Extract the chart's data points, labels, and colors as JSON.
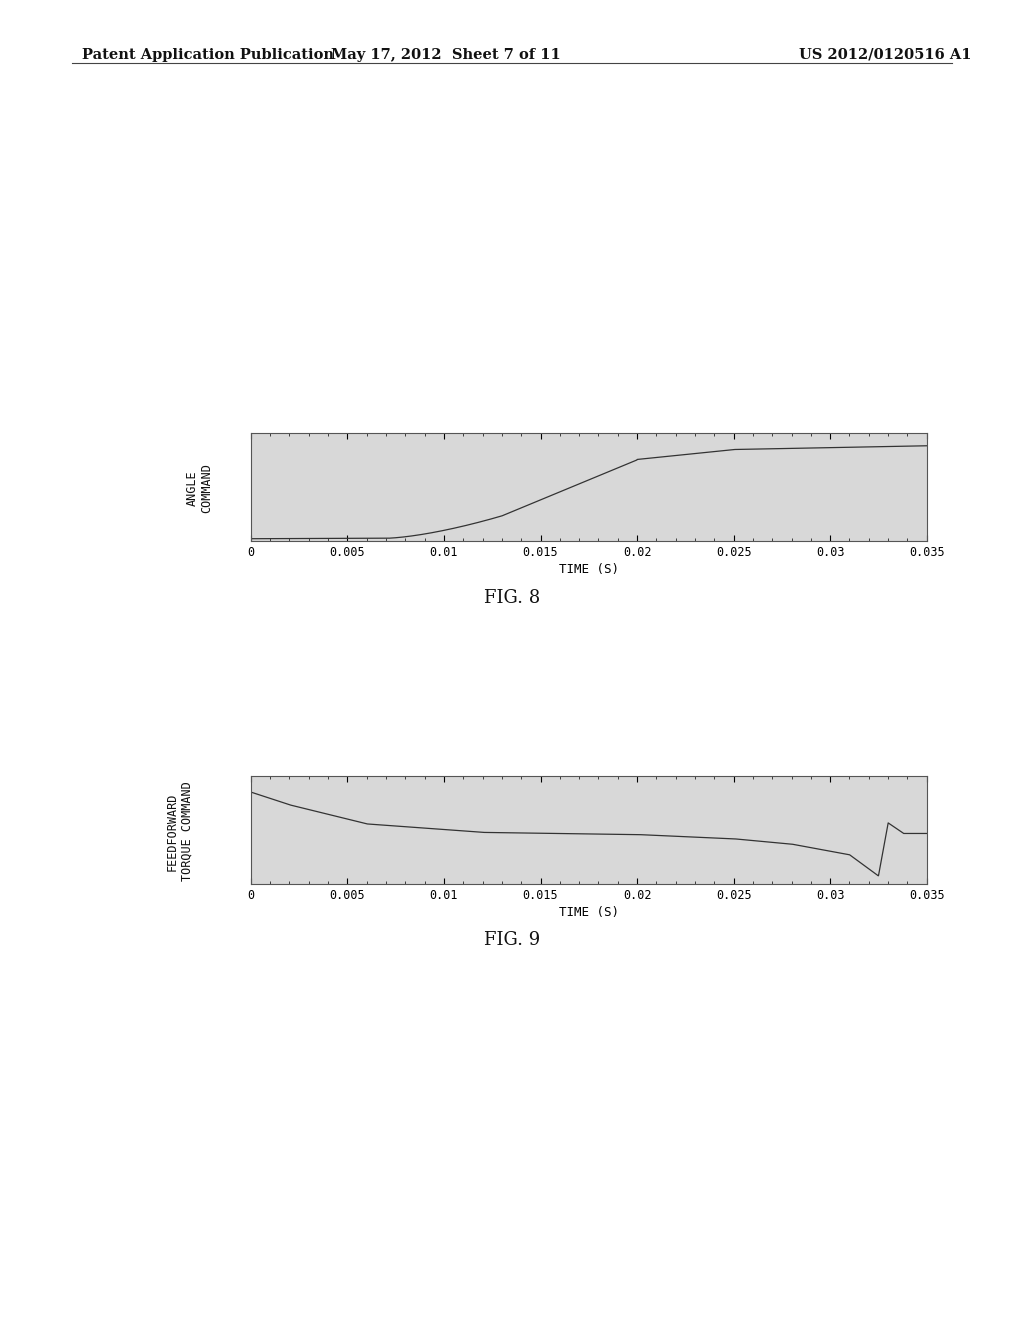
{
  "header_left": "Patent Application Publication",
  "header_center": "May 17, 2012  Sheet 7 of 11",
  "header_right": "US 2012/0120516 A1",
  "fig8_label": "FIG. 8",
  "fig9_label": "FIG. 9",
  "xlabel": "TIME (S)",
  "ylabel1": "ANGLE\nCOMMAND",
  "ylabel2": "FEEDFORWARD\nTORQUE COMMAND",
  "xlim": [
    0,
    0.035
  ],
  "xticks": [
    0,
    0.005,
    0.01,
    0.015,
    0.02,
    0.025,
    0.03,
    0.035
  ],
  "xticklabels": [
    "0",
    "0.005",
    "0.01",
    "0.015",
    "0.02",
    "0.025",
    "0.03",
    "0.035"
  ],
  "background_color": "#ffffff",
  "line_color": "#333333",
  "plot_bg_color": "#d8d8d8",
  "border_color": "#555555"
}
